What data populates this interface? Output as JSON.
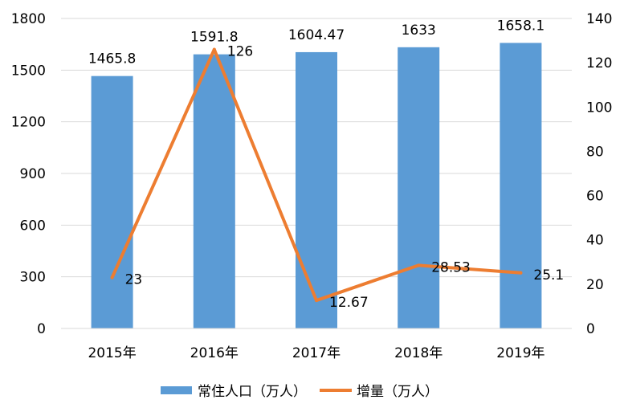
{
  "chart_data": {
    "type": "bar+line",
    "categories": [
      "2015年",
      "2016年",
      "2017年",
      "2018年",
      "2019年"
    ],
    "series": [
      {
        "name": "常住人口（万人）",
        "type": "bar",
        "axis": "left",
        "values": [
          1465.8,
          1591.8,
          1604.47,
          1633,
          1658.1
        ],
        "labels": [
          "1465.8",
          "1591.8",
          "1604.47",
          "1633",
          "1658.1"
        ],
        "color": "#5b9bd5"
      },
      {
        "name": "增量（万人）",
        "type": "line",
        "axis": "right",
        "values": [
          23,
          126,
          12.67,
          28.53,
          25.1
        ],
        "labels": [
          "23",
          "126",
          "12.67",
          "28.53",
          "25.1"
        ],
        "color": "#ed7d31"
      }
    ],
    "y_left": {
      "ylim": [
        0,
        1800
      ],
      "ticks": [
        "0",
        "300",
        "600",
        "900",
        "1200",
        "1500",
        "1800"
      ]
    },
    "y_right": {
      "ylim": [
        0,
        140
      ],
      "ticks": [
        "0",
        "20",
        "40",
        "60",
        "80",
        "100",
        "120",
        "140"
      ]
    },
    "grid": true,
    "legend": "bottom"
  }
}
